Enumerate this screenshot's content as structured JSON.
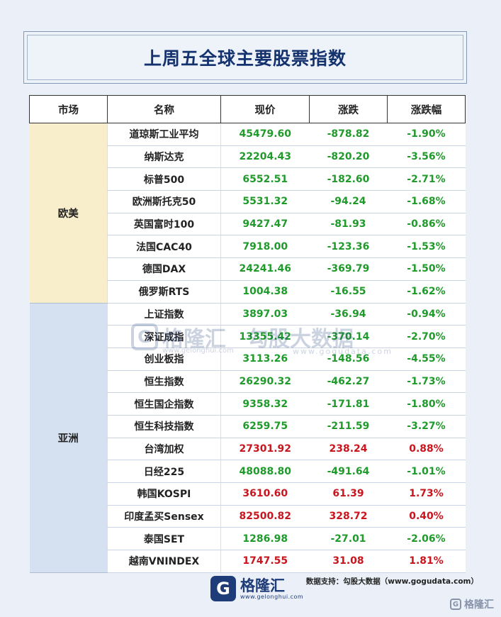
{
  "title": "上周五全球主要股票指数",
  "headers": [
    "市场",
    "名称",
    "现价",
    "涨跌",
    "涨跌幅"
  ],
  "markets": {
    "eu": "欧美",
    "asia": "亚洲"
  },
  "rows": [
    {
      "name": "道琼斯工业平均",
      "price": "45479.60",
      "change": "-878.82",
      "pct": "-1.90%",
      "dir": "down"
    },
    {
      "name": "纳斯达克",
      "price": "22204.43",
      "change": "-820.20",
      "pct": "-3.56%",
      "dir": "down"
    },
    {
      "name": "标普500",
      "price": "6552.51",
      "change": "-182.60",
      "pct": "-2.71%",
      "dir": "down"
    },
    {
      "name": "欧洲斯托克50",
      "price": "5531.32",
      "change": "-94.24",
      "pct": "-1.68%",
      "dir": "down"
    },
    {
      "name": "英国富时100",
      "price": "9427.47",
      "change": "-81.93",
      "pct": "-0.86%",
      "dir": "down"
    },
    {
      "name": "法国CAC40",
      "price": "7918.00",
      "change": "-123.36",
      "pct": "-1.53%",
      "dir": "down"
    },
    {
      "name": "德国DAX",
      "price": "24241.46",
      "change": "-369.79",
      "pct": "-1.50%",
      "dir": "down"
    },
    {
      "name": "俄罗斯RTS",
      "price": "1004.38",
      "change": "-16.55",
      "pct": "-1.62%",
      "dir": "down"
    },
    {
      "name": "上证指数",
      "price": "3897.03",
      "change": "-36.94",
      "pct": "-0.94%",
      "dir": "down"
    },
    {
      "name": "深证成指",
      "price": "13355.42",
      "change": "-370.14",
      "pct": "-2.70%",
      "dir": "down"
    },
    {
      "name": "创业板指",
      "price": "3113.26",
      "change": "-148.56",
      "pct": "-4.55%",
      "dir": "down"
    },
    {
      "name": "恒生指数",
      "price": "26290.32",
      "change": "-462.27",
      "pct": "-1.73%",
      "dir": "down"
    },
    {
      "name": "恒生国企指数",
      "price": "9358.32",
      "change": "-171.81",
      "pct": "-1.80%",
      "dir": "down"
    },
    {
      "name": "恒生科技指数",
      "price": "6259.75",
      "change": "-211.59",
      "pct": "-3.27%",
      "dir": "down"
    },
    {
      "name": "台湾加权",
      "price": "27301.92",
      "change": "238.24",
      "pct": "0.88%",
      "dir": "up"
    },
    {
      "name": "日经225",
      "price": "48088.80",
      "change": "-491.64",
      "pct": "-1.01%",
      "dir": "down"
    },
    {
      "name": "韩国KOSPI",
      "price": "3610.60",
      "change": "61.39",
      "pct": "1.73%",
      "dir": "up"
    },
    {
      "name": "印度孟买Sensex",
      "price": "82500.82",
      "change": "328.72",
      "pct": "0.40%",
      "dir": "up"
    },
    {
      "name": "泰国SET",
      "price": "1286.98",
      "change": "-27.01",
      "pct": "-2.06%",
      "dir": "down"
    },
    {
      "name": "越南VNINDEX",
      "price": "1747.55",
      "change": "31.08",
      "pct": "1.81%",
      "dir": "up"
    }
  ],
  "colors": {
    "up": "#c9151e",
    "down": "#1f9a2b",
    "brand": "#1e3c78"
  },
  "watermark": {
    "brand": "格隆汇",
    "brand_url": "www.gelonghui.com",
    "partner": "勾股大数据",
    "partner_url": "www.gogudata.com"
  },
  "footer": {
    "source": "数据支持：勾股大数据（www.gogudata.com）",
    "logo_letter": "G",
    "logo_name": "格隆汇",
    "logo_url": "www.gelonghui.com",
    "corner_text": "格隆汇"
  }
}
